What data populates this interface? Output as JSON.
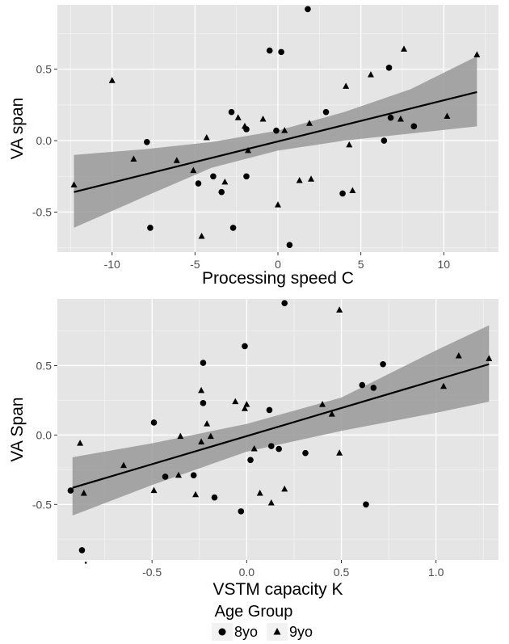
{
  "chart_data": [
    {
      "type": "scatter",
      "xlabel": "Processing speed C",
      "ylabel": "VA span",
      "xlim": [
        -13.3,
        13.3
      ],
      "ylim": [
        -0.78,
        0.95
      ],
      "xticks": [
        -10,
        -5,
        0,
        5,
        10
      ],
      "yticks": [
        -0.5,
        0.0,
        0.5
      ],
      "xtick_labels": [
        "-10",
        "-5",
        "0",
        "5",
        "10"
      ],
      "ytick_labels": [
        "-0.5",
        "0.0",
        "0.5"
      ],
      "grid": true,
      "regression": {
        "x": [
          -12.3,
          12.0
        ],
        "y": [
          -0.36,
          0.34
        ]
      },
      "confidence_band": {
        "x": [
          -12.3,
          -8,
          -4,
          0,
          4,
          8,
          12.0
        ],
        "upper": [
          -0.1,
          -0.06,
          -0.01,
          0.07,
          0.2,
          0.36,
          0.59
        ],
        "lower": [
          -0.61,
          -0.39,
          -0.19,
          -0.07,
          0.0,
          0.05,
          0.1
        ]
      },
      "series": [
        {
          "name": "8yo",
          "marker": "circle",
          "x": [
            1.8,
            -0.5,
            0.2,
            6.7,
            -2.8,
            2.9,
            6.8,
            8.2,
            -7.9,
            -1.9,
            -0.1,
            6.4,
            -4.8,
            -3.9,
            -3.4,
            -1.9,
            3.9,
            -7.7,
            -2.7,
            0.7
          ],
          "y": [
            0.92,
            0.63,
            0.62,
            0.51,
            0.2,
            0.2,
            0.16,
            0.1,
            -0.01,
            0.08,
            0.07,
            0.0,
            -0.3,
            -0.25,
            -0.36,
            -0.25,
            -0.37,
            -0.61,
            -0.61,
            -0.73
          ]
        },
        {
          "name": "9yo",
          "marker": "triangle",
          "x": [
            7.6,
            12.0,
            -10.0,
            5.6,
            4.1,
            7.4,
            10.2,
            -2.4,
            -0.9,
            1.9,
            0.4,
            -4.3,
            -2.0,
            -1.8,
            -8.7,
            -6.1,
            -5.1,
            -3.2,
            4.3,
            1.3,
            2.0,
            4.5,
            -12.3,
            0.0,
            -4.6
          ],
          "y": [
            0.64,
            0.6,
            0.42,
            0.46,
            0.38,
            0.15,
            0.17,
            0.16,
            0.15,
            0.12,
            0.07,
            0.02,
            0.1,
            -0.07,
            -0.13,
            -0.14,
            -0.21,
            -0.29,
            -0.03,
            -0.28,
            -0.27,
            -0.35,
            -0.31,
            -0.45,
            -0.67
          ]
        }
      ]
    },
    {
      "type": "scatter",
      "xlabel": "VSTM capacity K",
      "ylabel": "VA Span",
      "xlim": [
        -1.0,
        1.33
      ],
      "ylim": [
        -0.9,
        0.98
      ],
      "xticks": [
        -0.5,
        0.0,
        0.5,
        1.0
      ],
      "yticks": [
        -0.5,
        0.0,
        0.5
      ],
      "xtick_labels": [
        "-0.5",
        "0.0",
        "0.5",
        "1.0"
      ],
      "ytick_labels": [
        "-0.5",
        "0.0",
        "0.5"
      ],
      "grid": true,
      "regression": {
        "x": [
          -0.92,
          1.28
        ],
        "y": [
          -0.38,
          0.51
        ]
      },
      "confidence_band": {
        "x": [
          -0.92,
          -0.5,
          0.0,
          0.5,
          1.0,
          1.28
        ],
        "upper": [
          -0.16,
          -0.06,
          0.08,
          0.27,
          0.61,
          0.79
        ],
        "lower": [
          -0.58,
          -0.36,
          -0.12,
          0.03,
          0.16,
          0.24
        ]
      },
      "series": [
        {
          "name": "8yo",
          "marker": "circle",
          "x": [
            0.2,
            -0.01,
            -0.23,
            0.72,
            0.61,
            0.67,
            -0.49,
            -0.23,
            0.12,
            -0.93,
            0.02,
            0.13,
            0.17,
            0.31,
            -0.43,
            -0.28,
            -0.17,
            -0.03,
            0.63,
            -0.87
          ],
          "y": [
            0.95,
            0.64,
            0.52,
            0.51,
            0.36,
            0.34,
            0.09,
            0.23,
            0.18,
            -0.4,
            -0.18,
            -0.08,
            -0.1,
            -0.13,
            -0.3,
            -0.29,
            -0.45,
            -0.55,
            -0.5,
            -0.83
          ],
          "extra_markers": [
            {
              "x": -0.85,
              "y": -0.92,
              "size": "small"
            }
          ]
        },
        {
          "name": "9yo",
          "marker": "triangle",
          "x": [
            0.49,
            1.12,
            1.28,
            1.04,
            0.4,
            0.45,
            -0.06,
            0.0,
            -0.01,
            -0.24,
            -0.21,
            -0.19,
            -0.35,
            -0.24,
            -0.65,
            -0.49,
            -0.88,
            -0.86,
            0.04,
            0.49,
            0.07,
            0.13,
            0.2,
            -0.36,
            -0.27
          ],
          "y": [
            0.9,
            0.57,
            0.55,
            0.35,
            0.22,
            0.15,
            0.24,
            0.22,
            0.19,
            0.32,
            0.08,
            -0.01,
            -0.01,
            -0.05,
            -0.22,
            -0.4,
            -0.06,
            -0.42,
            -0.1,
            -0.13,
            -0.42,
            -0.49,
            -0.39,
            -0.29,
            -0.43
          ]
        }
      ]
    }
  ],
  "legend": {
    "title": "Age Group",
    "placement": "bottom",
    "items": [
      {
        "label": "8yo",
        "marker": "circle"
      },
      {
        "label": "9yo",
        "marker": "triangle"
      }
    ]
  },
  "colors": {
    "panel": "#e5e5e5",
    "grid_major": "#ffffff",
    "band": "#999999",
    "line": "#000000",
    "points": "#000000",
    "tick_text": "#4d4d4d"
  }
}
